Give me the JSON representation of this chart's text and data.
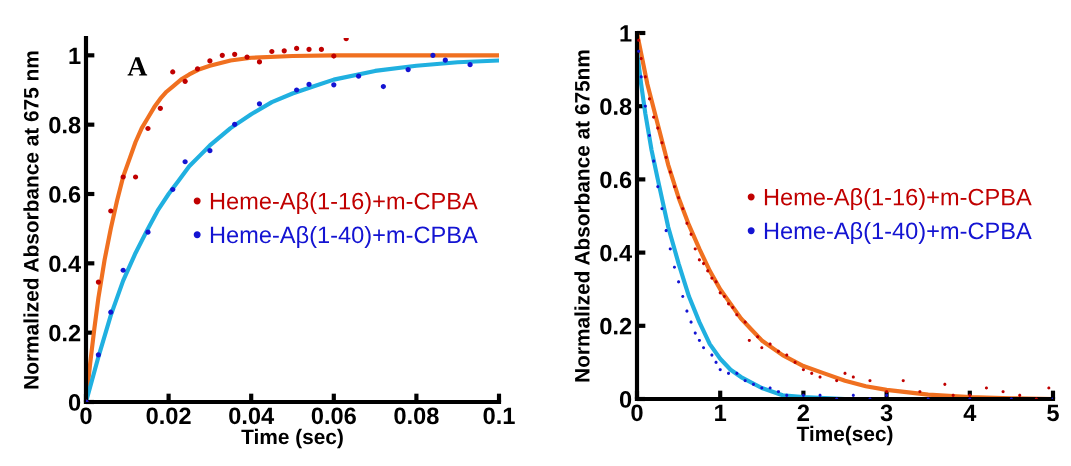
{
  "chart_data": [
    {
      "type": "scatter",
      "xlabel": "Time (sec)",
      "ylabel": "Normalized Absorbance at 675 nm",
      "annotations": [
        "A"
      ],
      "xlim": [
        0,
        0.1
      ],
      "ylim": [
        0,
        1.05
      ],
      "xticks": [
        0,
        0.02,
        0.04,
        0.06,
        0.08,
        0.1
      ],
      "yticks": [
        0,
        0.2,
        0.4,
        0.6,
        0.8,
        1
      ],
      "grid": false,
      "legend": "right",
      "series": [
        {
          "name": "Heme-Aβ(1-16)+m-CPBA",
          "color": "#c00000",
          "marker": "circle",
          "x": [
            0,
            0.003,
            0.006,
            0.009,
            0.012,
            0.015,
            0.018,
            0.021,
            0.024,
            0.027,
            0.03,
            0.033,
            0.036,
            0.039,
            0.042,
            0.045,
            0.048,
            0.051,
            0.054,
            0.057,
            0.06,
            0.063
          ],
          "values": [
            0,
            0.346,
            0.551,
            0.649,
            0.649,
            0.789,
            0.847,
            0.952,
            0.925,
            0.961,
            0.984,
            1.0,
            1.003,
            0.995,
            0.981,
            1.011,
            1.013,
            1.02,
            1.017,
            1.017,
            0.998,
            1.048
          ]
        },
        {
          "name": "Heme-Aβ(1-40)+m-CPBA",
          "color": "#1414d2",
          "marker": "circle",
          "x": [
            0,
            0.003,
            0.006,
            0.009,
            0.015,
            0.021,
            0.024,
            0.03,
            0.036,
            0.042,
            0.051,
            0.054,
            0.06,
            0.066,
            0.072,
            0.078,
            0.084,
            0.087,
            0.093
          ],
          "values": [
            0,
            0.136,
            0.259,
            0.38,
            0.49,
            0.613,
            0.693,
            0.725,
            0.801,
            0.86,
            0.9,
            0.916,
            0.915,
            0.94,
            0.91,
            0.959,
            1.0,
            0.986,
            0.973
          ]
        },
        {
          "type": "line",
          "color": "#f07020",
          "marker": "none",
          "x": [
            0,
            0.001,
            0.002,
            0.003,
            0.0045,
            0.006,
            0.0075,
            0.009,
            0.0105,
            0.012,
            0.0135,
            0.015,
            0.0165,
            0.018,
            0.0195,
            0.021,
            0.023,
            0.025,
            0.0275,
            0.03,
            0.035,
            0.04,
            0.05,
            0.06,
            0.08,
            0.1
          ],
          "values": [
            0,
            0.11,
            0.21,
            0.3,
            0.41,
            0.5,
            0.58,
            0.65,
            0.7,
            0.75,
            0.79,
            0.82,
            0.85,
            0.875,
            0.895,
            0.91,
            0.93,
            0.945,
            0.96,
            0.97,
            0.985,
            0.993,
            0.998,
            1.0,
            1.0,
            1.0
          ]
        },
        {
          "type": "line",
          "color": "#20b0e0",
          "marker": "none",
          "x": [
            0,
            0.003,
            0.006,
            0.009,
            0.012,
            0.015,
            0.0175,
            0.02,
            0.0225,
            0.025,
            0.0275,
            0.03,
            0.035,
            0.04,
            0.045,
            0.05,
            0.055,
            0.06,
            0.07,
            0.08,
            0.09,
            0.1
          ],
          "values": [
            0,
            0.13,
            0.25,
            0.35,
            0.43,
            0.5,
            0.555,
            0.6,
            0.64,
            0.68,
            0.71,
            0.74,
            0.79,
            0.83,
            0.865,
            0.89,
            0.91,
            0.93,
            0.955,
            0.97,
            0.98,
            0.985
          ]
        }
      ]
    },
    {
      "type": "scatter",
      "xlabel": "Time(sec)",
      "ylabel": "Normalized Absorbance at 675nm",
      "xlim": [
        0,
        5
      ],
      "ylim": [
        0,
        1
      ],
      "xticks": [
        0,
        1,
        2,
        3,
        4,
        5
      ],
      "yticks": [
        0,
        0.2,
        0.4,
        0.6,
        0.8,
        1
      ],
      "grid": false,
      "legend": "right",
      "series": [
        {
          "name": "Heme-Aβ(1-16)+m-CPBA",
          "color": "#c00000",
          "marker": "circle",
          "x": [
            0.02,
            0.05,
            0.1,
            0.15,
            0.2,
            0.25,
            0.3,
            0.35,
            0.4,
            0.45,
            0.5,
            0.55,
            0.6,
            0.65,
            0.7,
            0.75,
            0.8,
            0.85,
            0.9,
            0.95,
            1.0,
            1.05,
            1.1,
            1.15,
            1.2,
            1.3,
            1.35,
            1.45,
            1.5,
            1.6,
            1.7,
            1.8,
            1.9,
            2.0,
            2.1,
            2.2,
            2.4,
            2.5,
            2.6,
            2.8,
            3.0,
            3.2,
            3.4,
            3.7,
            3.8,
            4.0,
            4.2,
            4.4,
            4.6,
            4.8,
            4.95
          ],
          "values": [
            0.98,
            0.93,
            0.88,
            0.82,
            0.77,
            0.74,
            0.7,
            0.66,
            0.62,
            0.58,
            0.55,
            0.52,
            0.48,
            0.45,
            0.41,
            0.38,
            0.37,
            0.35,
            0.33,
            0.32,
            0.29,
            0.28,
            0.26,
            0.25,
            0.23,
            0.21,
            0.16,
            0.17,
            0.14,
            0.15,
            0.13,
            0.12,
            0.1,
            0.08,
            0.07,
            0.06,
            0.05,
            0.07,
            0.06,
            0.05,
            0.02,
            0.05,
            0.02,
            0.04,
            0.01,
            0.01,
            0.03,
            0.02,
            0.01,
            0.0,
            0.03
          ]
        },
        {
          "name": "Heme-Aβ(1-40)+m-CPBA",
          "color": "#1414d2",
          "marker": "circle",
          "x": [
            0.02,
            0.05,
            0.1,
            0.15,
            0.2,
            0.25,
            0.3,
            0.35,
            0.4,
            0.45,
            0.5,
            0.55,
            0.6,
            0.65,
            0.7,
            0.75,
            0.8,
            0.9,
            0.95,
            1.0,
            1.1,
            1.2,
            1.3,
            1.4,
            1.5,
            1.6,
            1.7,
            1.8,
            2.0,
            2.2,
            2.4,
            2.6,
            2.8,
            3.0,
            3.5,
            4.0,
            4.5,
            5.0
          ],
          "values": [
            0.95,
            0.88,
            0.8,
            0.72,
            0.65,
            0.58,
            0.52,
            0.46,
            0.41,
            0.36,
            0.32,
            0.28,
            0.24,
            0.21,
            0.18,
            0.16,
            0.14,
            0.12,
            0.1,
            0.08,
            0.07,
            0.07,
            0.05,
            0.04,
            0.03,
            0.03,
            0.02,
            0.01,
            0.01,
            0.01,
            0.0,
            0.01,
            0.0,
            0.01,
            0.0,
            0.0,
            0.0,
            0.0
          ]
        },
        {
          "type": "line",
          "color": "#f07020",
          "marker": "none",
          "x": [
            0,
            0.125,
            0.25,
            0.375,
            0.5,
            0.625,
            0.75,
            0.875,
            1,
            1.125,
            1.25,
            1.375,
            1.5,
            1.75,
            2,
            2.25,
            2.5,
            2.75,
            3,
            3.5,
            4,
            4.5,
            5
          ],
          "values": [
            1,
            0.86,
            0.75,
            0.64,
            0.55,
            0.475,
            0.41,
            0.35,
            0.3,
            0.26,
            0.22,
            0.19,
            0.16,
            0.12,
            0.09,
            0.07,
            0.05,
            0.035,
            0.025,
            0.012,
            0.005,
            0.002,
            0.0
          ]
        },
        {
          "type": "line",
          "color": "#20b0e0",
          "marker": "none",
          "x": [
            0,
            0.05,
            0.1,
            0.175,
            0.25,
            0.375,
            0.5,
            0.625,
            0.75,
            0.875,
            1,
            1.125,
            1.25,
            1.5,
            1.75,
            2,
            2.5,
            3,
            5
          ],
          "values": [
            0.95,
            0.86,
            0.78,
            0.68,
            0.6,
            0.47,
            0.37,
            0.28,
            0.21,
            0.15,
            0.11,
            0.08,
            0.06,
            0.03,
            0.01,
            0.005,
            0.0,
            0.0,
            0.0
          ]
        }
      ]
    }
  ]
}
